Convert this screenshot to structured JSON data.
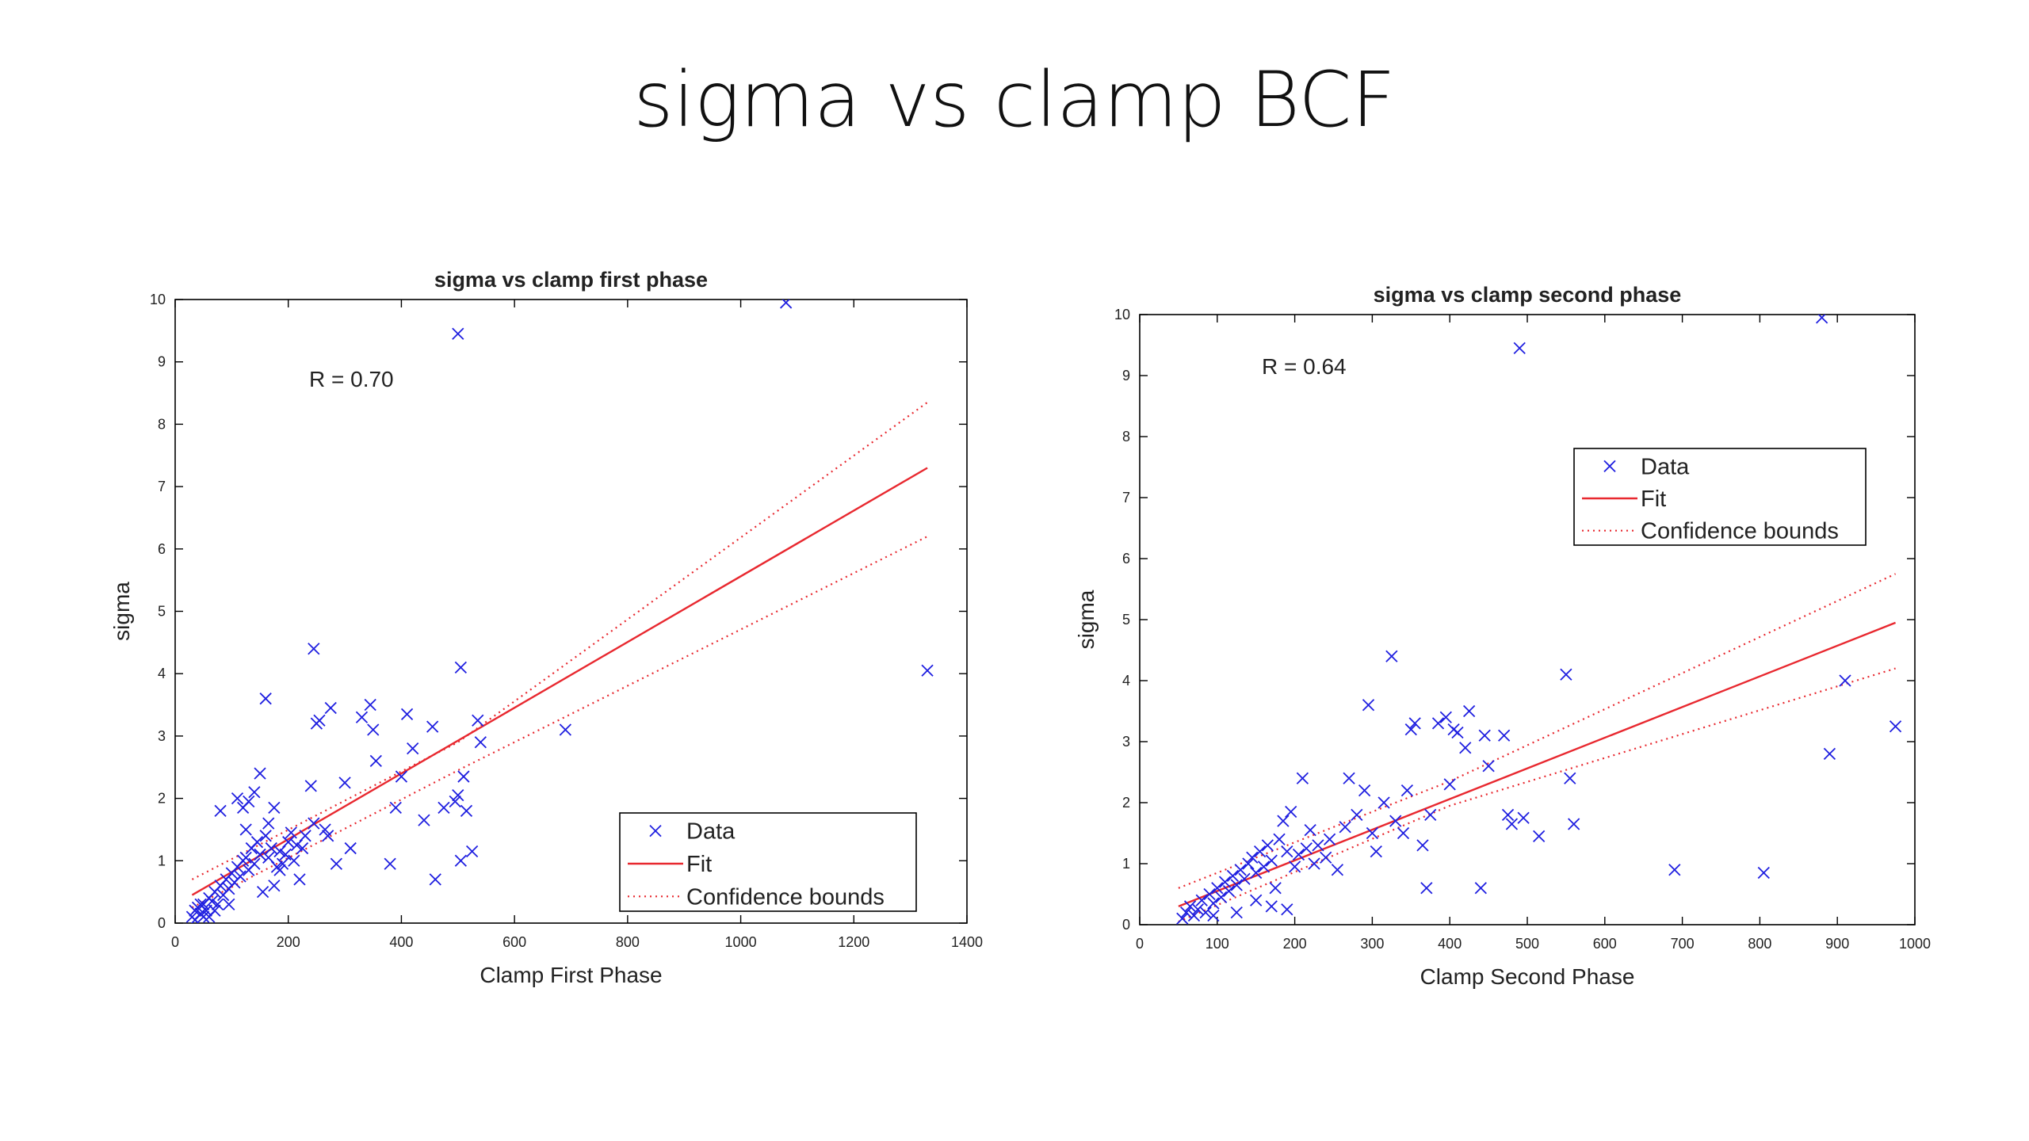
{
  "slide": {
    "title": "sigma vs clamp BCF"
  },
  "colors": {
    "data": "#1f1fe0",
    "fit": "#e8282f",
    "axes": "#000000"
  },
  "chart_data": [
    {
      "type": "scatter",
      "title": "sigma vs clamp first phase",
      "xlabel": "Clamp First Phase",
      "ylabel": "sigma",
      "xlim": [
        0,
        1400
      ],
      "ylim": [
        0,
        10
      ],
      "xticks": [
        0,
        200,
        400,
        600,
        800,
        1000,
        1200,
        1400
      ],
      "yticks": [
        0,
        1,
        2,
        3,
        4,
        5,
        6,
        7,
        8,
        9,
        10
      ],
      "annotation": "R = 0.70",
      "legend": {
        "placement": "bottom-right",
        "items": [
          "Data",
          "Fit",
          "Confidence bounds"
        ]
      },
      "grid": false,
      "series": [
        {
          "name": "Data",
          "marker": "x",
          "points": [
            [
              30,
              0.1
            ],
            [
              35,
              0.2
            ],
            [
              40,
              0.25
            ],
            [
              45,
              0.15
            ],
            [
              50,
              0.3
            ],
            [
              55,
              0.2
            ],
            [
              60,
              0.4
            ],
            [
              65,
              0.35
            ],
            [
              70,
              0.5
            ],
            [
              75,
              0.3
            ],
            [
              80,
              0.6
            ],
            [
              85,
              0.45
            ],
            [
              90,
              0.7
            ],
            [
              95,
              0.55
            ],
            [
              100,
              0.8
            ],
            [
              105,
              0.65
            ],
            [
              110,
              0.9
            ],
            [
              115,
              0.75
            ],
            [
              120,
              1.0
            ],
            [
              125,
              1.05
            ],
            [
              130,
              0.85
            ],
            [
              135,
              1.2
            ],
            [
              140,
              0.95
            ],
            [
              145,
              1.3
            ],
            [
              150,
              1.1
            ],
            [
              155,
              0.5
            ],
            [
              160,
              1.4
            ],
            [
              165,
              1.6
            ],
            [
              170,
              1.2
            ],
            [
              175,
              1.85
            ],
            [
              180,
              0.9
            ],
            [
              185,
              1.15
            ],
            [
              190,
              0.95
            ],
            [
              200,
              1.3
            ],
            [
              205,
              1.45
            ],
            [
              210,
              1.0
            ],
            [
              215,
              1.25
            ],
            [
              220,
              0.7
            ],
            [
              225,
              1.2
            ],
            [
              230,
              1.4
            ],
            [
              240,
              2.2
            ],
            [
              245,
              1.6
            ],
            [
              250,
              3.2
            ],
            [
              255,
              3.25
            ],
            [
              265,
              1.5
            ],
            [
              270,
              1.4
            ],
            [
              275,
              3.45
            ],
            [
              285,
              0.95
            ],
            [
              300,
              2.25
            ],
            [
              310,
              1.2
            ],
            [
              330,
              3.3
            ],
            [
              345,
              3.5
            ],
            [
              350,
              3.1
            ],
            [
              355,
              2.6
            ],
            [
              380,
              0.95
            ],
            [
              390,
              1.85
            ],
            [
              400,
              2.35
            ],
            [
              410,
              3.35
            ],
            [
              420,
              2.8
            ],
            [
              440,
              1.65
            ],
            [
              455,
              3.15
            ],
            [
              460,
              0.7
            ],
            [
              475,
              1.85
            ],
            [
              495,
              1.95
            ],
            [
              500,
              2.05
            ],
            [
              505,
              1.0
            ],
            [
              510,
              2.35
            ],
            [
              515,
              1.8
            ],
            [
              525,
              1.15
            ],
            [
              535,
              3.25
            ],
            [
              540,
              2.9
            ],
            [
              690,
              3.1
            ],
            [
              80,
              1.8
            ],
            [
              95,
              0.3
            ],
            [
              110,
              2.0
            ],
            [
              120,
              1.85
            ],
            [
              130,
              1.95
            ],
            [
              140,
              2.1
            ],
            [
              125,
              1.5
            ],
            [
              150,
              2.4
            ],
            [
              160,
              3.6
            ],
            [
              165,
              1.05
            ],
            [
              175,
              0.6
            ],
            [
              185,
              0.85
            ],
            [
              195,
              1.1
            ],
            [
              60,
              0.1
            ],
            [
              45,
              0.3
            ],
            [
              35,
              0.05
            ],
            [
              50,
              0.1
            ],
            [
              70,
              0.2
            ],
            [
              500,
              9.45
            ],
            [
              1080,
              9.95
            ],
            [
              1330,
              4.05
            ],
            [
              245,
              4.4
            ],
            [
              505,
              4.1
            ]
          ]
        },
        {
          "name": "Fit",
          "line": [
            [
              30,
              0.45
            ],
            [
              1330,
              7.3
            ]
          ]
        },
        {
          "name": "Confidence bounds",
          "upper": [
            [
              30,
              0.7
            ],
            [
              500,
              2.9
            ],
            [
              1330,
              8.35
            ]
          ],
          "lower": [
            [
              30,
              0.25
            ],
            [
              500,
              2.45
            ],
            [
              1330,
              6.2
            ]
          ]
        }
      ]
    },
    {
      "type": "scatter",
      "title": "sigma vs clamp second phase",
      "xlabel": "Clamp Second Phase",
      "ylabel": "sigma",
      "xlim": [
        0,
        1000
      ],
      "ylim": [
        0,
        10
      ],
      "xticks": [
        0,
        100,
        200,
        300,
        400,
        500,
        600,
        700,
        800,
        900,
        1000
      ],
      "yticks": [
        0,
        1,
        2,
        3,
        4,
        5,
        6,
        7,
        8,
        9,
        10
      ],
      "annotation": "R = 0.64",
      "legend": {
        "placement": "top-right",
        "items": [
          "Data",
          "Fit",
          "Confidence bounds"
        ]
      },
      "grid": false,
      "series": [
        {
          "name": "Data",
          "marker": "x",
          "points": [
            [
              55,
              0.1
            ],
            [
              60,
              0.2
            ],
            [
              65,
              0.3
            ],
            [
              70,
              0.15
            ],
            [
              75,
              0.25
            ],
            [
              80,
              0.4
            ],
            [
              85,
              0.2
            ],
            [
              90,
              0.5
            ],
            [
              95,
              0.35
            ],
            [
              100,
              0.6
            ],
            [
              105,
              0.45
            ],
            [
              110,
              0.7
            ],
            [
              115,
              0.55
            ],
            [
              120,
              0.8
            ],
            [
              125,
              0.65
            ],
            [
              130,
              0.9
            ],
            [
              135,
              0.75
            ],
            [
              140,
              1.0
            ],
            [
              145,
              1.1
            ],
            [
              150,
              0.85
            ],
            [
              155,
              1.2
            ],
            [
              160,
              0.95
            ],
            [
              165,
              1.3
            ],
            [
              170,
              1.05
            ],
            [
              175,
              0.6
            ],
            [
              180,
              1.4
            ],
            [
              185,
              1.7
            ],
            [
              190,
              1.2
            ],
            [
              195,
              1.85
            ],
            [
              200,
              0.95
            ],
            [
              205,
              1.15
            ],
            [
              210,
              2.4
            ],
            [
              215,
              1.25
            ],
            [
              220,
              1.55
            ],
            [
              225,
              1.0
            ],
            [
              230,
              1.3
            ],
            [
              240,
              1.1
            ],
            [
              245,
              1.4
            ],
            [
              255,
              0.9
            ],
            [
              265,
              1.6
            ],
            [
              270,
              2.4
            ],
            [
              280,
              1.8
            ],
            [
              290,
              2.2
            ],
            [
              295,
              3.6
            ],
            [
              300,
              1.5
            ],
            [
              305,
              1.2
            ],
            [
              315,
              2.0
            ],
            [
              325,
              4.4
            ],
            [
              330,
              1.7
            ],
            [
              340,
              1.5
            ],
            [
              345,
              2.2
            ],
            [
              350,
              3.2
            ],
            [
              355,
              3.3
            ],
            [
              365,
              1.3
            ],
            [
              370,
              0.6
            ],
            [
              375,
              1.8
            ],
            [
              385,
              3.3
            ],
            [
              395,
              3.4
            ],
            [
              400,
              2.3
            ],
            [
              405,
              3.2
            ],
            [
              410,
              3.15
            ],
            [
              420,
              2.9
            ],
            [
              425,
              3.5
            ],
            [
              440,
              0.6
            ],
            [
              445,
              3.1
            ],
            [
              450,
              2.6
            ],
            [
              470,
              3.1
            ],
            [
              475,
              1.8
            ],
            [
              480,
              1.65
            ],
            [
              495,
              1.75
            ],
            [
              515,
              1.45
            ],
            [
              550,
              4.1
            ],
            [
              555,
              2.4
            ],
            [
              560,
              1.65
            ],
            [
              690,
              0.9
            ],
            [
              805,
              0.85
            ],
            [
              890,
              2.8
            ],
            [
              910,
              4.0
            ],
            [
              975,
              3.25
            ],
            [
              490,
              9.45
            ],
            [
              880,
              9.95
            ],
            [
              150,
              0.4
            ],
            [
              170,
              0.3
            ],
            [
              190,
              0.25
            ],
            [
              125,
              0.2
            ],
            [
              95,
              0.15
            ]
          ]
        },
        {
          "name": "Fit",
          "line": [
            [
              50,
              0.3
            ],
            [
              975,
              4.95
            ]
          ]
        },
        {
          "name": "Confidence bounds",
          "upper": [
            [
              50,
              0.6
            ],
            [
              400,
              2.35
            ],
            [
              975,
              5.75
            ]
          ],
          "lower": [
            [
              50,
              0.05
            ],
            [
              400,
              1.95
            ],
            [
              975,
              4.2
            ]
          ]
        }
      ]
    }
  ]
}
